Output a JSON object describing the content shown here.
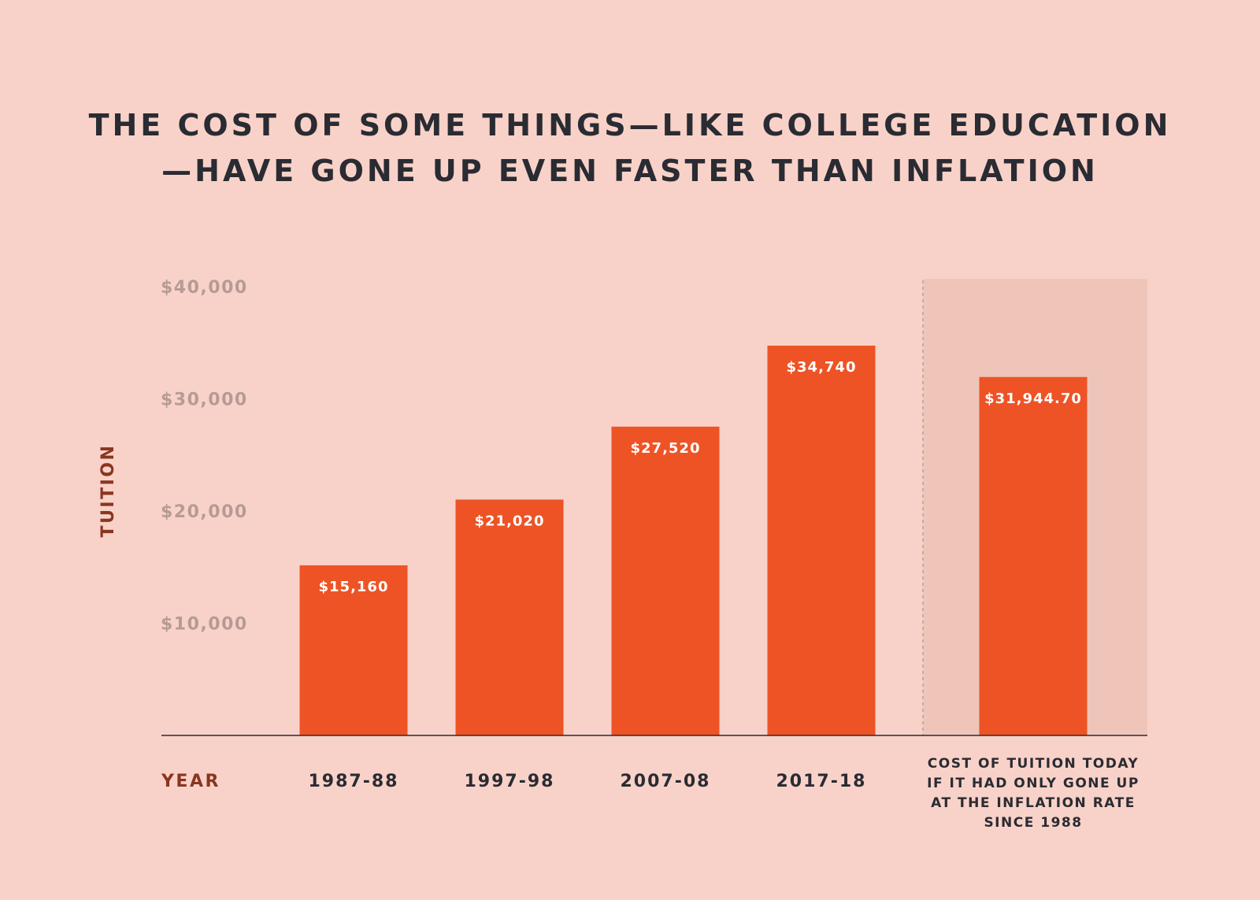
{
  "colors": {
    "background": "#f8d2c8",
    "bar": "#ee5325",
    "highlight_panel": "#efc5ba",
    "title": "#2a2b33",
    "axis_label": "#8a3520",
    "tick": "#b69b94"
  },
  "chart_data": {
    "type": "bar",
    "title_lines": [
      "THE COST OF SOME THINGS—LIKE COLLEGE EDUCATION",
      "—HAVE GONE UP EVEN FASTER THAN INFLATION"
    ],
    "ylabel": "TUITION",
    "xlabel": "YEAR",
    "ylim": [
      0,
      40000
    ],
    "yticks": [
      {
        "value": 10000,
        "label": "$10,000"
      },
      {
        "value": 20000,
        "label": "$20,000"
      },
      {
        "value": 30000,
        "label": "$30,000"
      },
      {
        "value": 40000,
        "label": "$40,000"
      }
    ],
    "bars": [
      {
        "category": [
          "1987-88"
        ],
        "value": 15160,
        "label": "$15,160"
      },
      {
        "category": [
          "1997-98"
        ],
        "value": 21020,
        "label": "$21,020"
      },
      {
        "category": [
          "2007-08"
        ],
        "value": 27520,
        "label": "$27,520"
      },
      {
        "category": [
          "2017-18"
        ],
        "value": 34740,
        "label": "$34,740"
      },
      {
        "category": [
          "COST OF TUITION TODAY",
          "IF IT HAD ONLY GONE UP",
          "AT THE INFLATION RATE",
          "SINCE 1988"
        ],
        "value": 31944.7,
        "label": "$31,944.70",
        "highlighted": true
      }
    ],
    "grid": false,
    "legend": "none"
  }
}
